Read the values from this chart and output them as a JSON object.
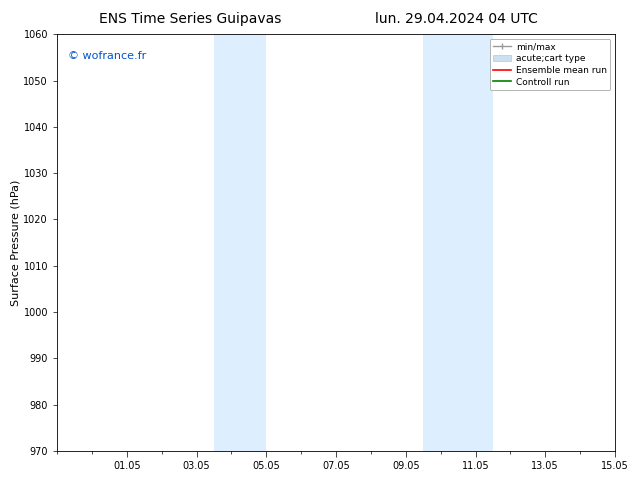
{
  "title_left": "ENS Time Series Guipavas",
  "title_right": "lun. 29.04.2024 04 UTC",
  "ylabel": "Surface Pressure (hPa)",
  "ylim": [
    970,
    1060
  ],
  "yticks": [
    970,
    980,
    990,
    1000,
    1010,
    1020,
    1030,
    1040,
    1050,
    1060
  ],
  "xlim": [
    0,
    16
  ],
  "xtick_labels": [
    "01.05",
    "03.05",
    "05.05",
    "07.05",
    "09.05",
    "11.05",
    "13.05",
    "15.05"
  ],
  "xtick_positions": [
    2,
    4,
    6,
    8,
    10,
    12,
    14,
    16
  ],
  "shaded_bands": [
    {
      "x_start": 4.5,
      "x_end": 6.0
    },
    {
      "x_start": 10.5,
      "x_end": 12.5
    }
  ],
  "shaded_color": "#ddeeff",
  "watermark_text": "© wofrance.fr",
  "watermark_color": "#0055cc",
  "bg_color": "#ffffff",
  "spine_color": "#000000",
  "title_fontsize": 10,
  "tick_fontsize": 7,
  "ylabel_fontsize": 8,
  "watermark_fontsize": 8
}
